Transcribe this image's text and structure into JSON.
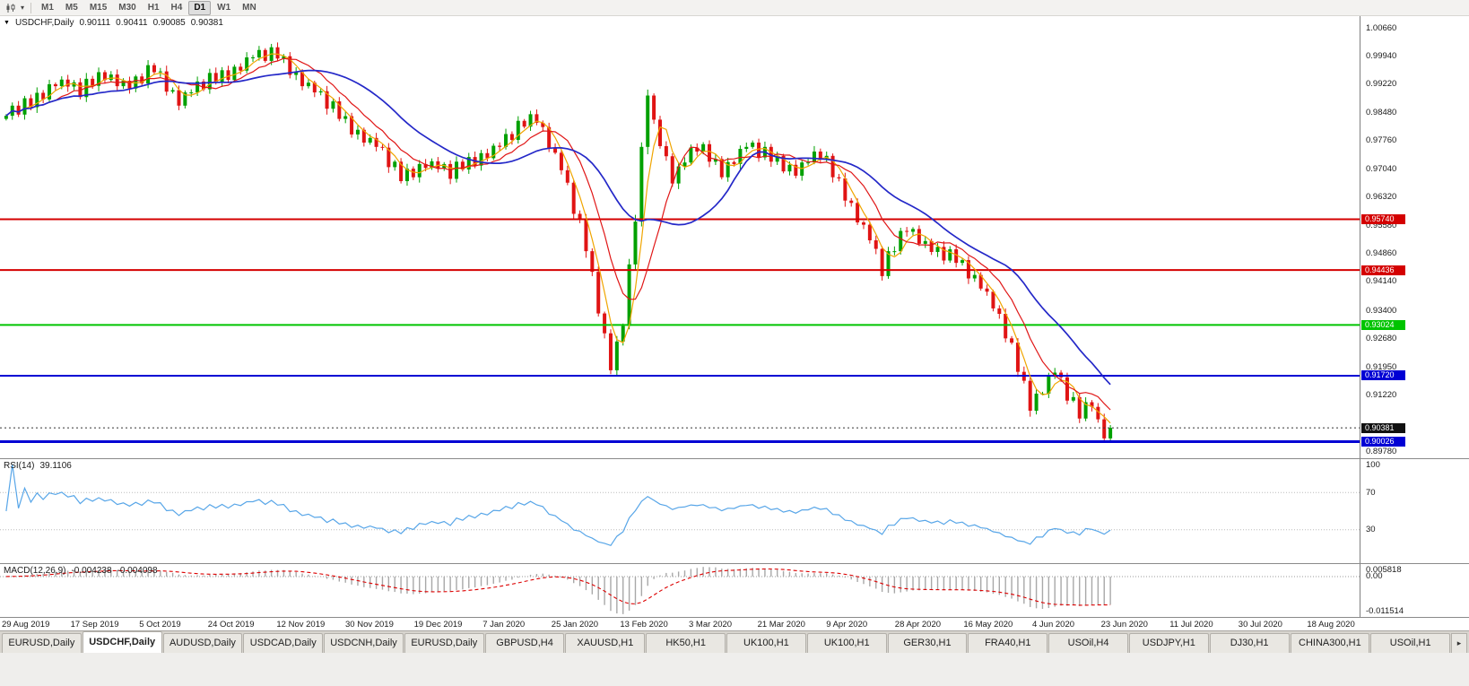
{
  "icons": {
    "collapse": "▼",
    "dropdown": "▾",
    "tab_scroll_right": "▸"
  },
  "toolbar": {
    "timeframes": [
      "M1",
      "M5",
      "M15",
      "M30",
      "H1",
      "H4",
      "D1",
      "W1",
      "MN"
    ],
    "active_timeframe": "D1"
  },
  "chart": {
    "symbol_period": "USDCHF,Daily",
    "open": "0.90111",
    "high": "0.90411",
    "low": "0.90085",
    "close": "0.90381"
  },
  "y_axis": {
    "ticks": [
      {
        "price": 1.0066,
        "label": "1.00660"
      },
      {
        "price": 0.9994,
        "label": "0.99940"
      },
      {
        "price": 0.9922,
        "label": "0.99220"
      },
      {
        "price": 0.9848,
        "label": "0.98480"
      },
      {
        "price": 0.9776,
        "label": "0.97760"
      },
      {
        "price": 0.9704,
        "label": "0.97040"
      },
      {
        "price": 0.9632,
        "label": "0.96320"
      },
      {
        "price": 0.9558,
        "label": "0.95580"
      },
      {
        "price": 0.9486,
        "label": "0.94860"
      },
      {
        "price": 0.9414,
        "label": "0.94140"
      },
      {
        "price": 0.934,
        "label": "0.93400"
      },
      {
        "price": 0.9268,
        "label": "0.92680"
      },
      {
        "price": 0.9195,
        "label": "0.91950"
      },
      {
        "price": 0.9122,
        "label": "0.91220"
      },
      {
        "price": 0.8978,
        "label": "0.89780"
      }
    ]
  },
  "x_axis": {
    "labels": [
      "29 Aug 2019",
      "17 Sep 2019",
      "5 Oct 2019",
      "24 Oct 2019",
      "12 Nov 2019",
      "30 Nov 2019",
      "19 Dec 2019",
      "7 Jan 2020",
      "25 Jan 2020",
      "13 Feb 2020",
      "3 Mar 2020",
      "21 Mar 2020",
      "9 Apr 2020",
      "28 Apr 2020",
      "16 May 2020",
      "4 Jun 2020",
      "23 Jun 2020",
      "11 Jul 2020",
      "30 Jul 2020",
      "18 Aug 2020"
    ]
  },
  "levels": [
    {
      "price": 0.9574,
      "label": "0.95740",
      "color": "#d40000",
      "width": 2
    },
    {
      "price": 0.94436,
      "label": "0.94436",
      "color": "#d40000",
      "width": 2
    },
    {
      "price": 0.93024,
      "label": "0.93024",
      "color": "#00c400",
      "width": 2
    },
    {
      "price": 0.9172,
      "label": "0.91720",
      "color": "#0000d4",
      "width": 2
    },
    {
      "price": 0.90026,
      "label": "0.90026",
      "color": "#0000d4",
      "width": 3
    }
  ],
  "current_price": {
    "price": 0.90381,
    "label": "0.90381",
    "color": "#111111"
  },
  "rsi_panel": {
    "name": "RSI(14)",
    "value": "39.1106",
    "line_color": "#58a6e8",
    "axis_labels": [
      {
        "value": 100,
        "label": "100"
      },
      {
        "value": 70,
        "label": "70"
      },
      {
        "value": 30,
        "label": "30"
      }
    ],
    "guide_levels": [
      70,
      30
    ]
  },
  "macd_panel": {
    "name": "MACD(12,26,9)",
    "value_macd": "-0.004238",
    "value_signal": "-0.004098",
    "hist_color": "#a8a8a8",
    "signal_color": "#dd0000",
    "axis_top_label": "0.005818",
    "axis_zero_label": "0.00",
    "axis_bottom_label": "-0.011514"
  },
  "tabs": {
    "active_index": 1,
    "items": [
      "EURUSD,Daily",
      "USDCHF,Daily",
      "AUDUSD,Daily",
      "USDCAD,Daily",
      "USDCNH,Daily",
      "EURUSD,Daily",
      "GBPUSD,H4",
      "XAUUSD,H1",
      "HK50,H1",
      "UK100,H1",
      "UK100,H1",
      "GER30,H1",
      "FRA40,H1",
      "USOil,H4",
      "USDJPY,H1",
      "DJ30,H1",
      "CHINA300,H1",
      "USOil,H1"
    ]
  },
  "chart_data": {
    "type": "candlestick",
    "symbol": "USDCHF",
    "period": "Daily",
    "price_min": 0.896,
    "price_max": 1.0096,
    "up_color": "#00a000",
    "down_color": "#e01414",
    "closes": [
      0.984,
      0.9866,
      0.9843,
      0.9885,
      0.9862,
      0.9899,
      0.9882,
      0.9921,
      0.9916,
      0.9933,
      0.9915,
      0.9926,
      0.9888,
      0.9935,
      0.9917,
      0.9952,
      0.9932,
      0.9946,
      0.9916,
      0.993,
      0.991,
      0.9941,
      0.9923,
      0.997,
      0.9952,
      0.9954,
      0.9902,
      0.9906,
      0.9866,
      0.99,
      0.99,
      0.9928,
      0.9908,
      0.995,
      0.9927,
      0.9957,
      0.9932,
      0.9966,
      0.9956,
      0.999,
      0.999,
      1.0009,
      0.9981,
      1.0016,
      0.9987,
      0.9993,
      0.9945,
      0.9952,
      0.9916,
      0.9925,
      0.99,
      0.9903,
      0.9858,
      0.9877,
      0.9832,
      0.9839,
      0.9792,
      0.9804,
      0.9771,
      0.9783,
      0.976,
      0.9758,
      0.9708,
      0.9722,
      0.9672,
      0.9704,
      0.9682,
      0.9716,
      0.9706,
      0.9723,
      0.9705,
      0.9716,
      0.9678,
      0.9722,
      0.9702,
      0.9734,
      0.9712,
      0.9744,
      0.9731,
      0.9763,
      0.976,
      0.9793,
      0.9778,
      0.9827,
      0.9812,
      0.9844,
      0.9822,
      0.9811,
      0.9756,
      0.9745,
      0.97,
      0.9668,
      0.9588,
      0.9572,
      0.9492,
      0.9439,
      0.9332,
      0.9281,
      0.9186,
      0.926,
      0.93,
      0.9458,
      0.9568,
      0.976,
      0.9892,
      0.983,
      0.9762,
      0.9736,
      0.9666,
      0.971,
      0.972,
      0.9758,
      0.9748,
      0.9767,
      0.9722,
      0.9729,
      0.9682,
      0.9721,
      0.9716,
      0.9755,
      0.976,
      0.9771,
      0.9733,
      0.976,
      0.9722,
      0.9737,
      0.9697,
      0.9714,
      0.9686,
      0.972,
      0.972,
      0.9748,
      0.9728,
      0.9737,
      0.9682,
      0.9679,
      0.9622,
      0.9616,
      0.9566,
      0.956,
      0.952,
      0.9498,
      0.9428,
      0.9492,
      0.9492,
      0.9544,
      0.9542,
      0.9549,
      0.9511,
      0.9518,
      0.949,
      0.9503,
      0.9468,
      0.9497,
      0.9462,
      0.9469,
      0.9422,
      0.9431,
      0.9396,
      0.9388,
      0.9345,
      0.9331,
      0.9268,
      0.9257,
      0.9182,
      0.9159,
      0.9082,
      0.9126,
      0.9126,
      0.917,
      0.918,
      0.9168,
      0.9108,
      0.9117,
      0.9062,
      0.9104,
      0.9092,
      0.906,
      0.9011,
      0.9038
    ],
    "last_ohlc": {
      "open": 0.90111,
      "high": 0.90411,
      "low": 0.90085,
      "close": 0.90381
    },
    "moving_averages": [
      {
        "period": 4,
        "color": "#f0a500",
        "width": 1.2
      },
      {
        "period": 9,
        "color": "#e01616",
        "width": 1.2
      },
      {
        "period": 20,
        "color": "#2428c8",
        "width": 1.7
      }
    ],
    "indicators": {
      "rsi_period": 14,
      "macd": [
        12,
        26,
        9
      ]
    }
  }
}
